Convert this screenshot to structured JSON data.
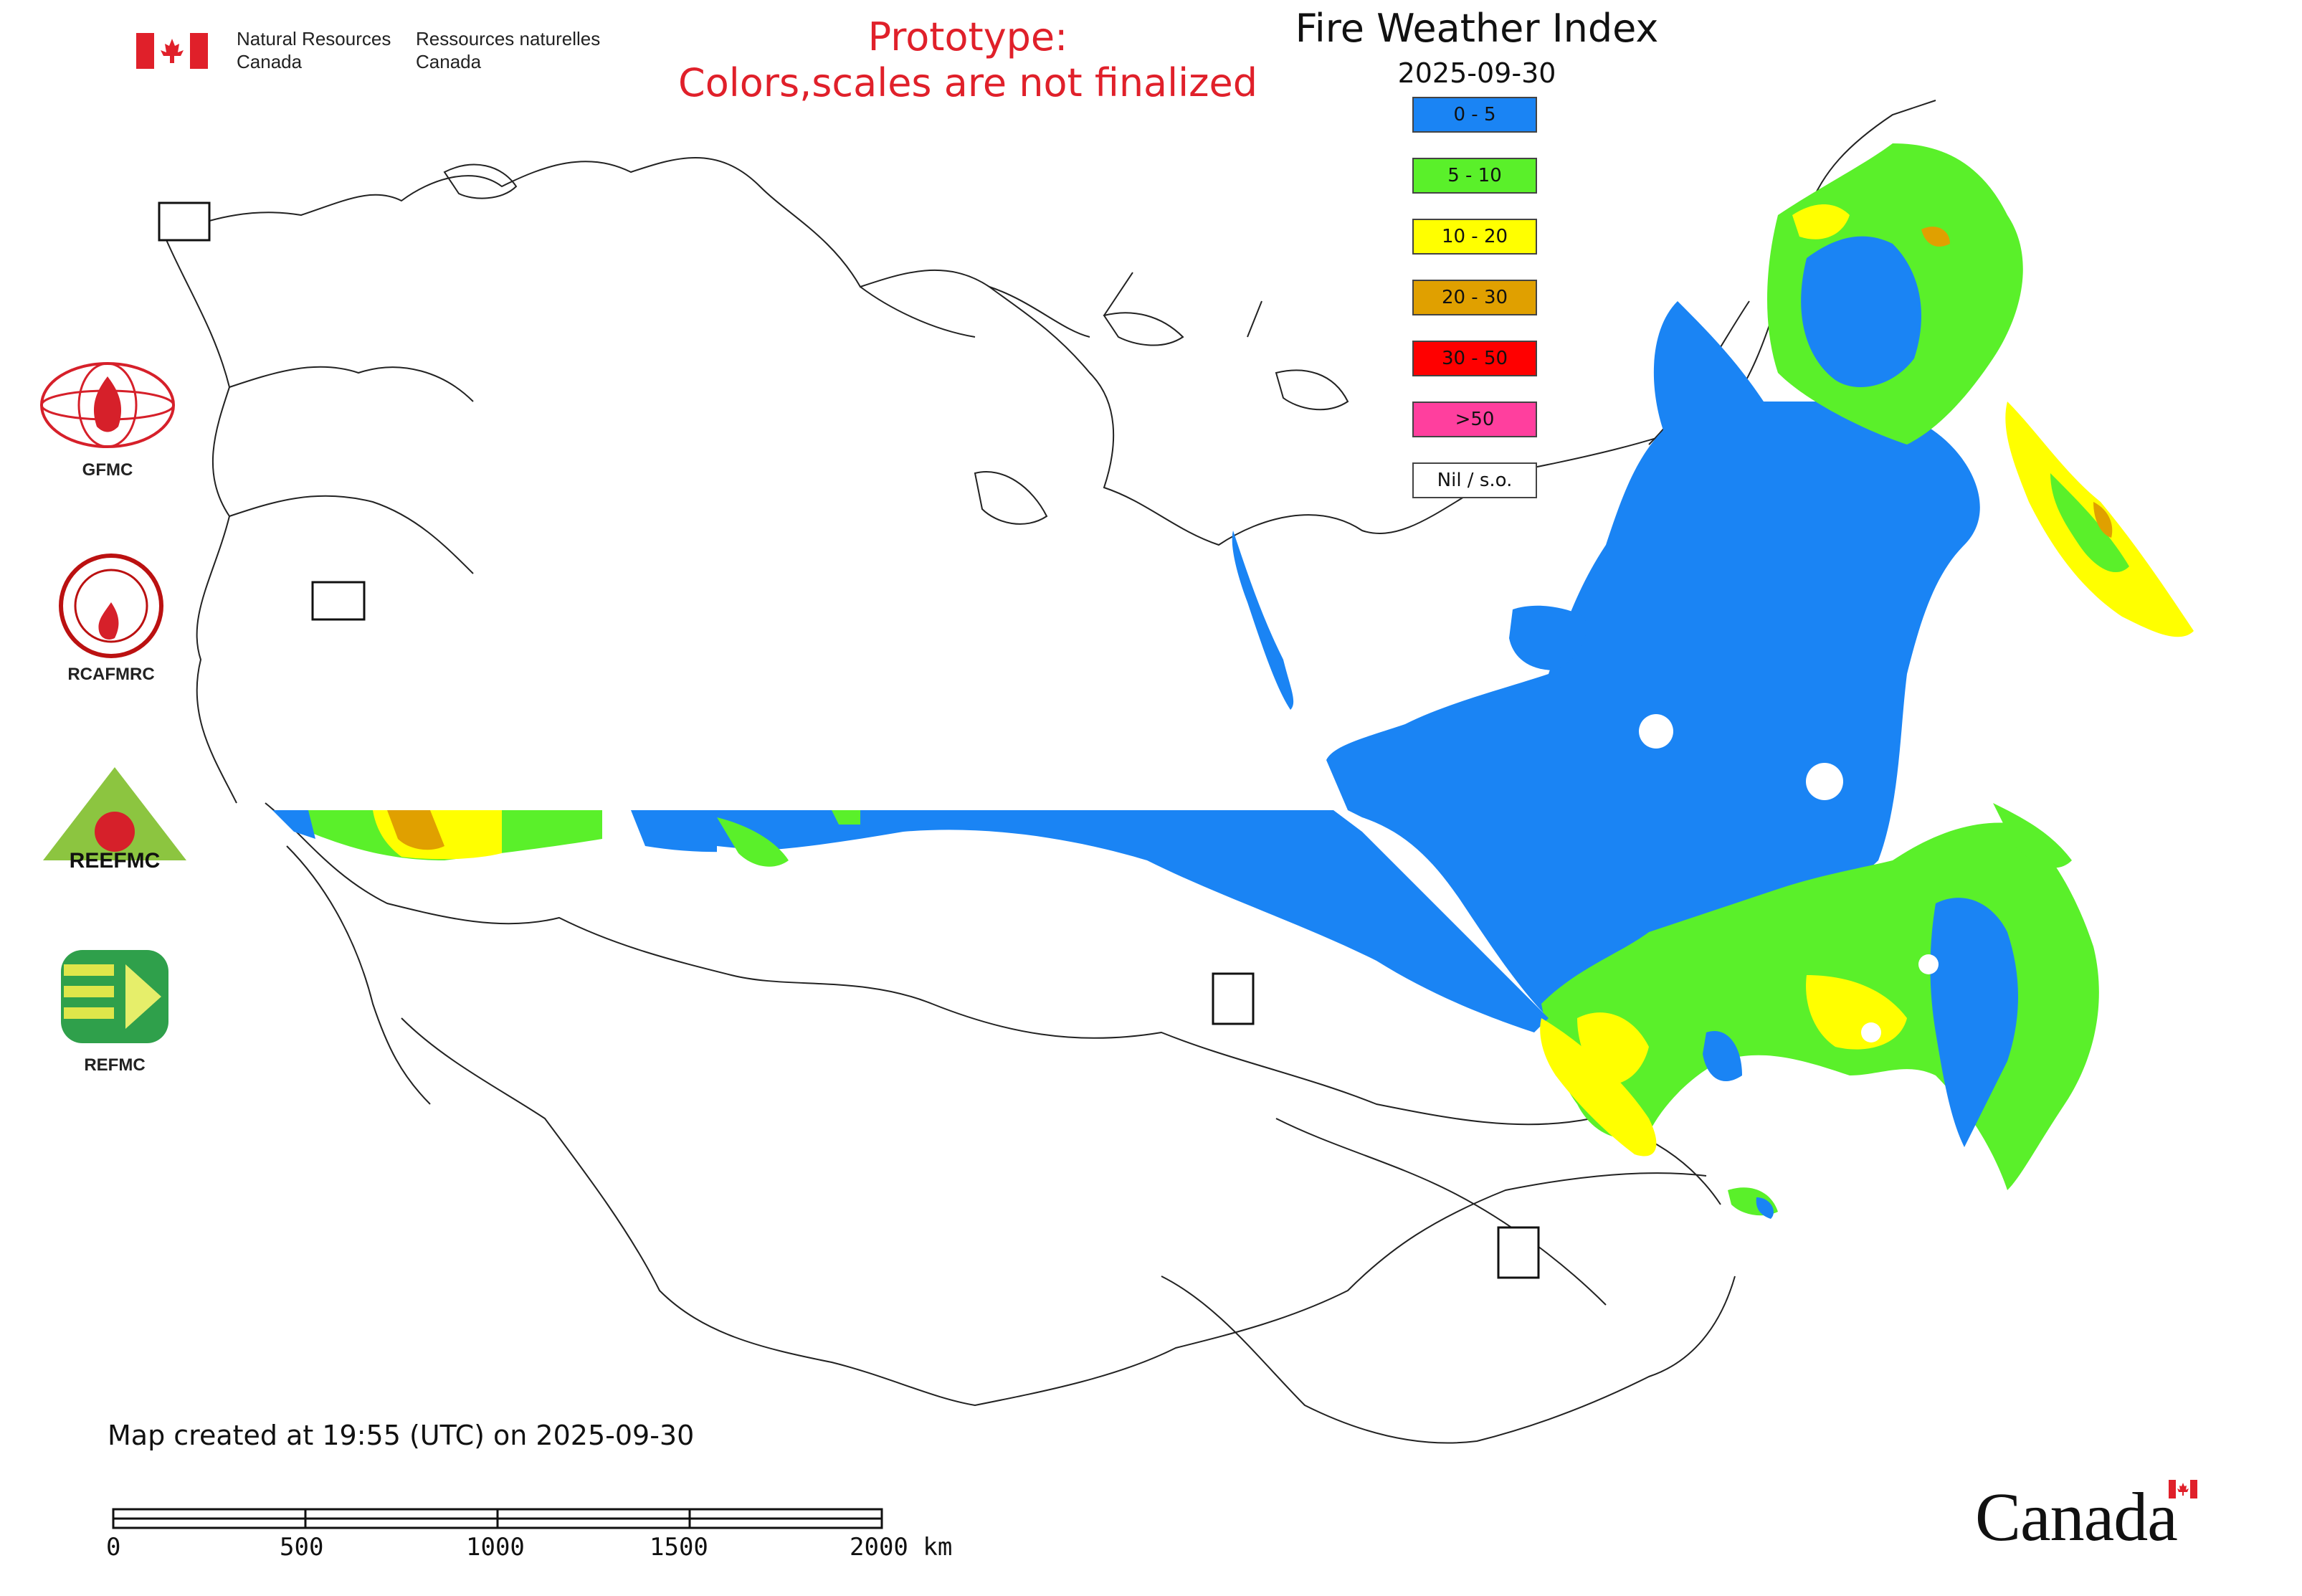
{
  "header": {
    "nrcan_en": "Natural Resources\nCanada",
    "nrcan_en_line1": "Natural Resources",
    "nrcan_en_line2": "Canada",
    "nrcan_fr_line1": "Ressources naturelles",
    "nrcan_fr_line2": "Canada",
    "prototype_line1": "Prototype:",
    "prototype_line2": "Colors,scales are not finalized"
  },
  "map": {
    "title": "Fire Weather Index",
    "date": "2025-09-30"
  },
  "legend": [
    {
      "label": "0 - 5",
      "color": "#1a84f4"
    },
    {
      "label": "5 - 10",
      "color": "#5af02a"
    },
    {
      "label": "10 - 20",
      "color": "#ffff00"
    },
    {
      "label": "20 - 30",
      "color": "#e0a000"
    },
    {
      "label": "30 - 50",
      "color": "#ff0000"
    },
    {
      "label": ">50",
      "color": "#ff3f9e"
    },
    {
      "label": "Nil / s.o.",
      "color": "#ffffff"
    }
  ],
  "partners": [
    {
      "name": "GFMC",
      "icon": "gfmc-logo-icon"
    },
    {
      "name": "RCAFMRC",
      "icon": "rcafmrc-logo-icon"
    },
    {
      "name": "",
      "icon": "reefmc-logo-icon",
      "logo_text": "REEFMC"
    },
    {
      "name": "REFMC",
      "icon": "refmc-logo-icon"
    }
  ],
  "footer": {
    "created": "Map created at 19:55 (UTC) on 2025-09-30",
    "scale_labels": [
      "0",
      "500",
      "1000",
      "1500",
      "2000 km"
    ],
    "wordmark": "Canada"
  }
}
